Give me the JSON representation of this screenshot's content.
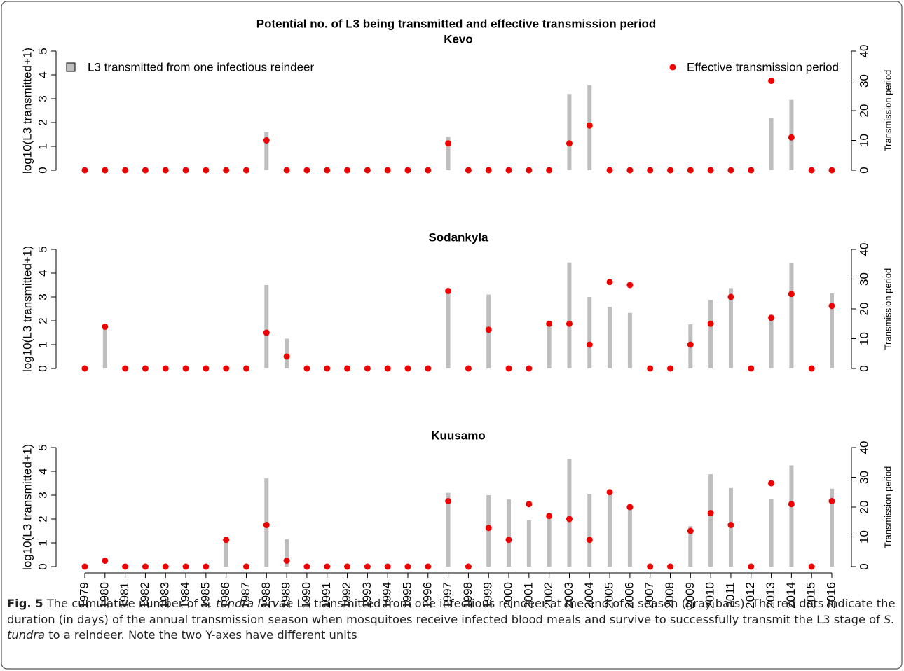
{
  "chart_data": [
    {
      "type": "bar_dot",
      "title": "Potential no. of L3 being transmitted and effective transmission period",
      "subtitle": "Kevo",
      "ylabel": "log10(L3 transmitted+1)",
      "y2label": "Transmission period",
      "ylim": [
        0,
        5
      ],
      "yticks": [
        0,
        1,
        2,
        3,
        4,
        5
      ],
      "y2lim": [
        0,
        40
      ],
      "y2ticks": [
        0,
        10,
        20,
        30,
        40
      ],
      "series": [
        {
          "name": "L3 transmitted from one infectious reindeer",
          "color": "#bebebe",
          "values": [
            0,
            0,
            0,
            0,
            0,
            0,
            0,
            0,
            0,
            1.6,
            0,
            0,
            0,
            0,
            0,
            0,
            0,
            0,
            1.4,
            0,
            0,
            0,
            0,
            0,
            3.2,
            3.57,
            0,
            0,
            0,
            0,
            0,
            0,
            0,
            0,
            2.2,
            2.95,
            0,
            0
          ]
        },
        {
          "name": "Effective transmission period",
          "color": "#ee0000",
          "axis": "y2",
          "values": [
            0,
            0,
            0,
            0,
            0,
            0,
            0,
            0,
            0,
            10,
            0,
            0,
            0,
            0,
            0,
            0,
            0,
            0,
            9,
            0,
            0,
            0,
            0,
            0,
            9,
            15,
            0,
            0,
            0,
            0,
            0,
            0,
            0,
            0,
            30,
            11,
            0,
            0
          ]
        }
      ]
    },
    {
      "type": "bar_dot",
      "subtitle": "Sodankyla",
      "ylabel": "log10(L3 transmitted+1)",
      "y2label": "Transmission period",
      "ylim": [
        0,
        5
      ],
      "yticks": [
        0,
        1,
        2,
        3,
        4,
        5
      ],
      "y2lim": [
        0,
        40
      ],
      "y2ticks": [
        0,
        10,
        20,
        30,
        40
      ],
      "series": [
        {
          "color": "#bebebe",
          "values": [
            0,
            1.7,
            0,
            0,
            0,
            0,
            0,
            0,
            0,
            3.5,
            1.25,
            0,
            0,
            0,
            0,
            0,
            0,
            0,
            3.3,
            0,
            3.1,
            0,
            0,
            1.85,
            4.45,
            3.0,
            2.58,
            2.33,
            0,
            0,
            1.85,
            2.87,
            3.37,
            0,
            2.25,
            4.42,
            0,
            3.15
          ]
        },
        {
          "color": "#ee0000",
          "axis": "y2",
          "values": [
            0,
            14,
            0,
            0,
            0,
            0,
            0,
            0,
            0,
            12,
            4,
            0,
            0,
            0,
            0,
            0,
            0,
            0,
            26,
            0,
            13,
            0,
            0,
            15,
            15,
            8,
            29,
            28,
            0,
            0,
            8,
            15,
            24,
            0,
            17,
            25,
            0,
            21
          ]
        }
      ]
    },
    {
      "type": "bar_dot",
      "subtitle": "Kuusamo",
      "ylabel": "log10(L3 transmitted+1)",
      "y2label": "Transmission period",
      "ylim": [
        0,
        5
      ],
      "yticks": [
        0,
        1,
        2,
        3,
        4,
        5
      ],
      "y2lim": [
        0,
        40
      ],
      "y2ticks": [
        0,
        10,
        20,
        30,
        40
      ],
      "categories": [
        "1979",
        "1980",
        "1981",
        "1982",
        "1983",
        "1984",
        "1985",
        "1986",
        "1987",
        "1988",
        "1989",
        "1990",
        "1991",
        "1992",
        "1993",
        "1994",
        "1995",
        "1996",
        "1997",
        "1998",
        "1999",
        "2000",
        "2001",
        "2002",
        "2003",
        "2004",
        "2005",
        "2006",
        "2007",
        "2008",
        "2009",
        "2010",
        "2011",
        "2012",
        "2013",
        "2014",
        "2015",
        "2016"
      ],
      "series": [
        {
          "color": "#bebebe",
          "values": [
            0,
            0,
            0,
            0,
            0,
            0,
            0,
            1.05,
            0,
            3.7,
            1.15,
            0,
            0,
            0,
            0,
            0,
            0,
            0,
            3.1,
            0,
            3.0,
            2.82,
            1.97,
            2.1,
            4.52,
            3.05,
            3.15,
            2.45,
            0,
            0,
            1.7,
            3.88,
            3.3,
            0,
            2.85,
            4.25,
            0,
            3.27
          ]
        },
        {
          "color": "#ee0000",
          "axis": "y2",
          "values": [
            0,
            2,
            0,
            0,
            0,
            0,
            0,
            9,
            0,
            14,
            2,
            0,
            0,
            0,
            0,
            0,
            0,
            0,
            22,
            0,
            13,
            9,
            21,
            17,
            16,
            9,
            25,
            20,
            0,
            0,
            12,
            18,
            14,
            0,
            28,
            21,
            0,
            22
          ]
        }
      ]
    }
  ],
  "caption": {
    "label": "Fig. 5",
    "parts": [
      "The cumulative number of ",
      "S. tundra larvae",
      " L3 transmitted from one infectious reindeer at the end of a season (gray bars). The red dots indicate the duration (in days) of the annual transmission season when mosquitoes receive infected blood meals and survive to successfully transmit the L3 stage of ",
      "S. tundra",
      " to a reindeer. Note the two Y-axes have different units"
    ]
  }
}
